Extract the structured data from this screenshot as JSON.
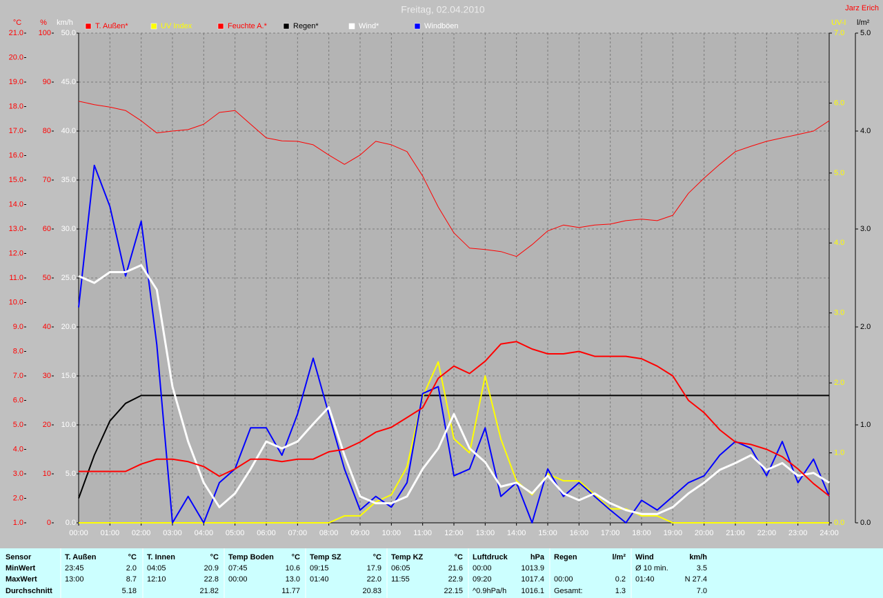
{
  "chart_data": {
    "type": "line",
    "title": "Freitag, 02.04.2010",
    "author": "Jarz Erich",
    "grid": true,
    "x": [
      0,
      0.5,
      1,
      1.5,
      2,
      2.5,
      3,
      3.5,
      4,
      4.5,
      5,
      5.5,
      6,
      6.5,
      7,
      7.5,
      8,
      8.5,
      9,
      9.5,
      10,
      10.5,
      11,
      11.5,
      12,
      12.5,
      13,
      13.5,
      14,
      14.5,
      15,
      15.5,
      16,
      16.5,
      17,
      17.5,
      18,
      18.5,
      19,
      19.5,
      20,
      20.5,
      21,
      21.5,
      22,
      22.5,
      23,
      23.5,
      24
    ],
    "xlim": [
      0,
      24
    ],
    "xticks": [
      {
        "value": 0,
        "label": "00:00"
      },
      {
        "value": 1,
        "label": "01:00"
      },
      {
        "value": 2,
        "label": "02:00"
      },
      {
        "value": 3,
        "label": "03:00"
      },
      {
        "value": 4,
        "label": "04:00"
      },
      {
        "value": 5,
        "label": "05:00"
      },
      {
        "value": 6,
        "label": "06:00"
      },
      {
        "value": 7,
        "label": "07:00"
      },
      {
        "value": 8,
        "label": "08:00"
      },
      {
        "value": 9,
        "label": "09:00"
      },
      {
        "value": 10,
        "label": "10:00"
      },
      {
        "value": 11,
        "label": "11:00"
      },
      {
        "value": 12,
        "label": "12:00"
      },
      {
        "value": 13,
        "label": "13:00"
      },
      {
        "value": 14,
        "label": "14:00"
      },
      {
        "value": 15,
        "label": "15:00"
      },
      {
        "value": 16,
        "label": "16:00"
      },
      {
        "value": 17,
        "label": "17:00"
      },
      {
        "value": 18,
        "label": "18:00"
      },
      {
        "value": 19,
        "label": "19:00"
      },
      {
        "value": 20,
        "label": "20:00"
      },
      {
        "value": 21,
        "label": "21:00"
      },
      {
        "value": 22,
        "label": "22:00"
      },
      {
        "value": 23,
        "label": "23:00"
      },
      {
        "value": 24,
        "label": "24:00"
      }
    ],
    "axes": [
      {
        "label": "°C",
        "side": "left",
        "color": "#ff0000",
        "lim": [
          1,
          21
        ],
        "ticks": [
          {
            "value": 1,
            "label": "1.0"
          },
          {
            "value": 2,
            "label": "2.0"
          },
          {
            "value": 3,
            "label": "3.0"
          },
          {
            "value": 4,
            "label": "4.0"
          },
          {
            "value": 5,
            "label": "5.0"
          },
          {
            "value": 6,
            "label": "6.0"
          },
          {
            "value": 7,
            "label": "7.0"
          },
          {
            "value": 8,
            "label": "8.0"
          },
          {
            "value": 9,
            "label": "9.0"
          },
          {
            "value": 10,
            "label": "10.0"
          },
          {
            "value": 11,
            "label": "11.0"
          },
          {
            "value": 12,
            "label": "12.0"
          },
          {
            "value": 13,
            "label": "13.0"
          },
          {
            "value": 14,
            "label": "14.0"
          },
          {
            "value": 15,
            "label": "15.0"
          },
          {
            "value": 16,
            "label": "16.0"
          },
          {
            "value": 17,
            "label": "17.0"
          },
          {
            "value": 18,
            "label": "18.0"
          },
          {
            "value": 19,
            "label": "19.0"
          },
          {
            "value": 20,
            "label": "20.0"
          },
          {
            "value": 21,
            "label": "21.0"
          }
        ]
      },
      {
        "label": "%",
        "side": "left",
        "color": "#ff0000",
        "lim": [
          0,
          100
        ],
        "ticks": [
          0,
          10,
          20,
          30,
          40,
          50,
          60,
          70,
          80,
          90,
          100
        ]
      },
      {
        "label": "km/h",
        "side": "left",
        "color": "#ffffff",
        "lim": [
          0,
          50
        ],
        "ticks": [
          {
            "value": 0,
            "label": "0.0"
          },
          {
            "value": 5,
            "label": "5.0"
          },
          {
            "value": 10,
            "label": "10.0"
          },
          {
            "value": 15,
            "label": "15.0"
          },
          {
            "value": 20,
            "label": "20.0"
          },
          {
            "value": 25,
            "label": "25.0"
          },
          {
            "value": 30,
            "label": "30.0"
          },
          {
            "value": 35,
            "label": "35.0"
          },
          {
            "value": 40,
            "label": "40.0"
          },
          {
            "value": 45,
            "label": "45.0"
          },
          {
            "value": 50,
            "label": "50.0"
          }
        ]
      },
      {
        "label": "UV-I",
        "side": "right",
        "color": "#ffff00",
        "lim": [
          0,
          7
        ],
        "ticks": [
          {
            "value": 0,
            "label": "0.0"
          },
          {
            "value": 1,
            "label": "1.0"
          },
          {
            "value": 2,
            "label": "2.0"
          },
          {
            "value": 3,
            "label": "3.0"
          },
          {
            "value": 4,
            "label": "4.0"
          },
          {
            "value": 5,
            "label": "5.0"
          },
          {
            "value": 6,
            "label": "6.0"
          },
          {
            "value": 7,
            "label": "7.0"
          }
        ]
      },
      {
        "label": "l/m²",
        "side": "right",
        "color": "#000000",
        "lim": [
          0,
          5
        ],
        "ticks": [
          {
            "value": 0,
            "label": "0.0"
          },
          {
            "value": 1,
            "label": "1.0"
          },
          {
            "value": 2,
            "label": "2.0"
          },
          {
            "value": 3,
            "label": "3.0"
          },
          {
            "value": 4,
            "label": "4.0"
          },
          {
            "value": 5,
            "label": "5.0"
          }
        ]
      }
    ],
    "series": [
      {
        "name": "T. Außen*",
        "color": "#ff0000",
        "label_color": "#ff0000",
        "axis": 0,
        "width": 2,
        "values": [
          3.1,
          3.1,
          3.1,
          3.1,
          3.4,
          3.6,
          3.6,
          3.5,
          3.3,
          2.9,
          3.2,
          3.6,
          3.6,
          3.5,
          3.6,
          3.6,
          3.9,
          4.0,
          4.3,
          4.7,
          4.9,
          5.3,
          5.7,
          6.9,
          7.4,
          7.1,
          7.6,
          8.3,
          8.4,
          8.1,
          7.9,
          7.9,
          8.0,
          7.8,
          7.8,
          7.8,
          7.7,
          7.4,
          7.0,
          6.0,
          5.5,
          4.8,
          4.3,
          4.2,
          4.0,
          3.7,
          3.2,
          2.6,
          2.1
        ]
      },
      {
        "name": "UV Index",
        "color": "#ffff00",
        "label_color": "#ffff00",
        "axis": 3,
        "width": 2,
        "values": [
          0,
          0,
          0,
          0,
          0,
          0,
          0,
          0,
          0,
          0,
          0,
          0,
          0,
          0,
          0,
          0,
          0,
          0.1,
          0.1,
          0.3,
          0.4,
          0.8,
          1.8,
          2.3,
          1.2,
          1.0,
          2.1,
          1.2,
          0.6,
          0.4,
          0.7,
          0.6,
          0.6,
          0.4,
          0.2,
          0.2,
          0.1,
          0.1,
          0,
          0,
          0,
          0,
          0,
          0,
          0,
          0,
          0,
          0,
          0
        ]
      },
      {
        "name": "Feuchte A.*",
        "color": "#ff0000",
        "label_color": "#ff0000",
        "axis": 1,
        "width": 1,
        "values": [
          86.1,
          85.4,
          84.9,
          84.2,
          82.1,
          79.6,
          80.0,
          80.3,
          81.4,
          83.8,
          84.2,
          81.4,
          78.6,
          78.0,
          77.9,
          77.2,
          75.1,
          73.2,
          75.1,
          77.9,
          77.2,
          75.8,
          70.8,
          64.5,
          59.2,
          56.1,
          55.8,
          55.4,
          54.4,
          56.8,
          59.6,
          60.8,
          60.3,
          60.8,
          61.0,
          61.7,
          62.0,
          61.7,
          62.8,
          67.3,
          70.4,
          73.2,
          75.8,
          76.9,
          77.9,
          78.6,
          79.3,
          80.0,
          82.1
        ]
      },
      {
        "name": "Regen*",
        "color": "#000000",
        "label_color": "#000000",
        "axis": 4,
        "width": 2,
        "values": [
          0.25,
          0.69,
          1.04,
          1.22,
          1.3,
          1.3,
          1.3,
          1.3,
          1.3,
          1.3,
          1.3,
          1.3,
          1.3,
          1.3,
          1.3,
          1.3,
          1.3,
          1.3,
          1.3,
          1.3,
          1.3,
          1.3,
          1.3,
          1.3,
          1.3,
          1.3,
          1.3,
          1.3,
          1.3,
          1.3,
          1.3,
          1.3,
          1.3,
          1.3,
          1.3,
          1.3,
          1.3,
          1.3,
          1.3,
          1.3,
          1.3,
          1.3,
          1.3,
          1.3,
          1.3,
          1.3,
          1.3,
          1.3,
          1.3
        ]
      },
      {
        "name": "Wind*",
        "color": "#ffffff",
        "label_color": "#ffffff",
        "axis": 2,
        "width": 3,
        "values": [
          25.2,
          24.5,
          25.6,
          25.6,
          26.3,
          23.8,
          13.9,
          8.3,
          4.1,
          1.6,
          3.0,
          5.5,
          8.3,
          7.6,
          8.3,
          10.1,
          11.8,
          6.9,
          2.7,
          2.0,
          2.0,
          2.7,
          5.5,
          7.6,
          11.1,
          7.6,
          6.2,
          3.7,
          4.1,
          3.0,
          4.8,
          3.0,
          2.3,
          3.0,
          2.0,
          1.3,
          0.9,
          0.9,
          1.6,
          3.0,
          4.1,
          5.4,
          6.1,
          6.9,
          5.4,
          6.1,
          4.8,
          5.1,
          4.1
        ]
      },
      {
        "name": "Windböen",
        "color": "#0000ff",
        "label_color": "#ffffff",
        "axis": 2,
        "width": 2,
        "values": [
          22.0,
          36.5,
          32.3,
          25.2,
          30.8,
          18.2,
          0,
          2.7,
          0,
          4.1,
          5.5,
          9.7,
          9.7,
          6.9,
          11.1,
          16.8,
          11.1,
          5.5,
          1.3,
          2.7,
          1.6,
          4.1,
          13.2,
          13.9,
          4.8,
          5.5,
          9.7,
          2.7,
          4.1,
          0,
          5.5,
          2.7,
          4.1,
          2.7,
          1.3,
          0,
          2.3,
          1.3,
          2.7,
          4.1,
          4.8,
          6.9,
          8.3,
          7.6,
          4.8,
          8.3,
          4.1,
          6.5,
          2.7
        ]
      }
    ],
    "draw_order": [
      2,
      3,
      1,
      5,
      4,
      0
    ]
  },
  "table": {
    "row_labels": [
      "Sensor",
      "MinWert",
      "MaxWert",
      "Durchschnitt"
    ],
    "columns": [
      {
        "name": "T. Außen",
        "unit": "°C",
        "min": [
          "23:45",
          "2.0"
        ],
        "max": [
          "13:00",
          "8.7"
        ],
        "avg": [
          null,
          "5.18"
        ]
      },
      {
        "name": "T. Innen",
        "unit": "°C",
        "min": [
          "04:05",
          "20.9"
        ],
        "max": [
          "12:10",
          "22.8"
        ],
        "avg": [
          null,
          "21.82"
        ]
      },
      {
        "name": "Temp Boden",
        "unit": "°C",
        "min": [
          "07:45",
          "10.6"
        ],
        "max": [
          "00:00",
          "13.0"
        ],
        "avg": [
          null,
          "11.77"
        ]
      },
      {
        "name": "Temp SZ",
        "unit": "°C",
        "min": [
          "09:15",
          "17.9"
        ],
        "max": [
          "01:40",
          "22.0"
        ],
        "avg": [
          null,
          "20.83"
        ]
      },
      {
        "name": "Temp KZ",
        "unit": "°C",
        "min": [
          "06:05",
          "21.6"
        ],
        "max": [
          "11:55",
          "22.9"
        ],
        "avg": [
          null,
          "22.15"
        ]
      },
      {
        "name": "Luftdruck",
        "unit": "hPa",
        "min": [
          "00:00",
          "1013.9"
        ],
        "max": [
          "09:20",
          "1017.4"
        ],
        "avg": [
          "^0.9hPa/h",
          "1016.1"
        ]
      },
      {
        "name": "Regen",
        "unit": "l/m²",
        "min": [
          null,
          null
        ],
        "max": [
          "00:00",
          "0.2"
        ],
        "avg": [
          "Gesamt:",
          "1.3"
        ]
      },
      {
        "name": "Wind",
        "unit": "km/h",
        "min": [
          "Ø 10 min.",
          "3.5"
        ],
        "max": [
          "01:40",
          "N 27.4"
        ],
        "avg": [
          null,
          "7.0"
        ]
      }
    ]
  }
}
